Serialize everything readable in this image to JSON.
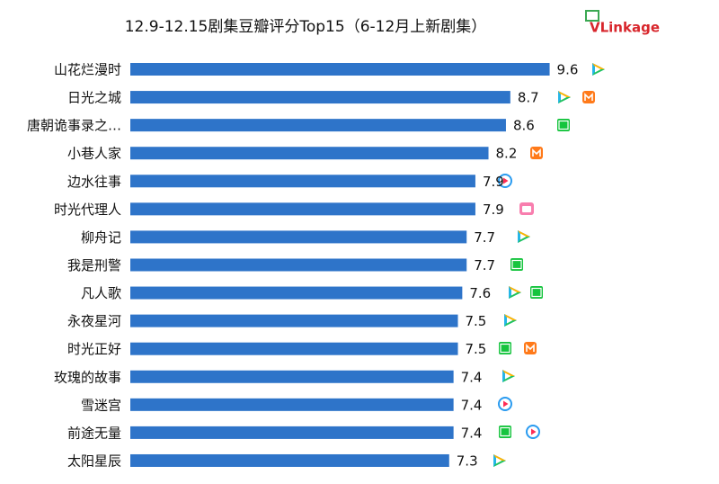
{
  "chart_data": {
    "type": "barh",
    "title": "12.9-12.15剧集豆瓣评分Top15（6-12月上新剧集）",
    "logo": "VLinkage",
    "categories": [
      "山花烂漫时",
      "日光之城",
      "唐朝诡事录之…",
      "小巷人家",
      "边水往事",
      "时光代理人",
      "柳舟记",
      "我是刑警",
      "凡人歌",
      "永夜星河",
      "时光正好",
      "玫瑰的故事",
      "雪迷宫",
      "前途无量",
      "太阳星辰"
    ],
    "values": [
      9.6,
      8.7,
      8.6,
      8.2,
      7.9,
      7.9,
      7.7,
      7.7,
      7.6,
      7.5,
      7.5,
      7.4,
      7.4,
      7.4,
      7.3
    ],
    "color": "#2e74c9",
    "xlim": [
      0,
      10
    ]
  }
}
